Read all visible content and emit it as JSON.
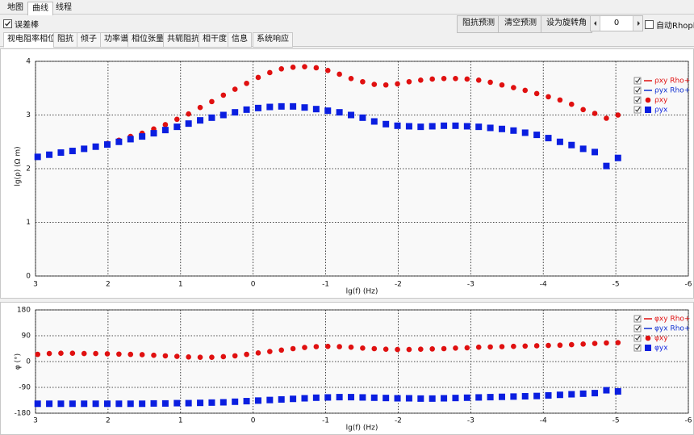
{
  "tabs": [
    "地图",
    "曲线",
    "线程"
  ],
  "error_bar_checkbox": "误差棒",
  "buttons": [
    "阻抗预测",
    "清空预测",
    "设为旋转角"
  ],
  "rotation_angle": 0,
  "auto_rhoplus": "自动Rhoplus",
  "sub_tabs": [
    "视电阻率相位",
    "阻抗",
    "倾子",
    "功率谱",
    "相位张量",
    "共轭阻抗",
    "相干度",
    "信息",
    "系统响应"
  ],
  "chart_data": [
    {
      "type": "scatter",
      "xlabel": "lg(f) (Hz)",
      "ylabel": "lg(ρ) (Ω m)",
      "xlim": [
        3,
        -6
      ],
      "xticks": [
        3,
        2,
        1,
        0,
        -1,
        -2,
        -3,
        -4,
        -5,
        -6
      ],
      "ylim": [
        0,
        4
      ],
      "yticks": [
        0,
        1,
        2,
        3,
        4
      ],
      "grid": true,
      "x": [
        2.97,
        2.81,
        2.65,
        2.49,
        2.33,
        2.17,
        2.01,
        1.85,
        1.69,
        1.53,
        1.37,
        1.21,
        1.05,
        0.89,
        0.73,
        0.57,
        0.41,
        0.25,
        0.09,
        -0.07,
        -0.23,
        -0.39,
        -0.55,
        -0.71,
        -0.87,
        -1.03,
        -1.19,
        -1.35,
        -1.51,
        -1.67,
        -1.83,
        -1.99,
        -2.15,
        -2.31,
        -2.47,
        -2.63,
        -2.79,
        -2.95,
        -3.11,
        -3.27,
        -3.43,
        -3.59,
        -3.75,
        -3.91,
        -4.07,
        -4.23,
        -4.39,
        -4.55,
        -4.71,
        -4.87,
        -5.03
      ],
      "line_legend": [
        {
          "name": "ρxy Rho+",
          "color": "#e01010"
        },
        {
          "name": "ρyx Rho+",
          "color": "#1030d0"
        }
      ],
      "series": [
        {
          "name": "ρxy",
          "color": "#e01010",
          "marker": "circle",
          "values": [
            2.22,
            2.26,
            2.3,
            2.33,
            2.37,
            2.41,
            2.47,
            2.53,
            2.6,
            2.66,
            2.74,
            2.82,
            2.92,
            3.02,
            3.14,
            3.25,
            3.37,
            3.48,
            3.59,
            3.7,
            3.79,
            3.86,
            3.89,
            3.9,
            3.88,
            3.83,
            3.76,
            3.68,
            3.62,
            3.57,
            3.56,
            3.58,
            3.62,
            3.65,
            3.67,
            3.68,
            3.68,
            3.67,
            3.65,
            3.61,
            3.56,
            3.51,
            3.46,
            3.4,
            3.34,
            3.28,
            3.2,
            3.1,
            3.03,
            2.94,
            3.0
          ]
        },
        {
          "name": "ρyx",
          "color": "#0a1ee0",
          "marker": "square",
          "values": [
            2.22,
            2.26,
            2.3,
            2.33,
            2.37,
            2.41,
            2.45,
            2.5,
            2.55,
            2.6,
            2.66,
            2.72,
            2.78,
            2.84,
            2.9,
            2.95,
            3.0,
            3.05,
            3.1,
            3.13,
            3.15,
            3.16,
            3.16,
            3.14,
            3.11,
            3.08,
            3.05,
            3.0,
            2.95,
            2.88,
            2.83,
            2.8,
            2.79,
            2.78,
            2.79,
            2.8,
            2.8,
            2.79,
            2.78,
            2.76,
            2.74,
            2.71,
            2.67,
            2.63,
            2.57,
            2.5,
            2.44,
            2.37,
            2.31,
            2.05,
            2.2
          ]
        }
      ]
    },
    {
      "type": "scatter",
      "xlabel": "lg(f) (Hz)",
      "ylabel": "φ (°)",
      "xlim": [
        3,
        -6
      ],
      "xticks": [
        3,
        2,
        1,
        0,
        -1,
        -2,
        -3,
        -4,
        -5,
        -6
      ],
      "ylim": [
        -180,
        180
      ],
      "yticks": [
        -180,
        -90,
        0,
        90,
        180
      ],
      "grid": true,
      "x": [
        2.97,
        2.81,
        2.65,
        2.49,
        2.33,
        2.17,
        2.01,
        1.85,
        1.69,
        1.53,
        1.37,
        1.21,
        1.05,
        0.89,
        0.73,
        0.57,
        0.41,
        0.25,
        0.09,
        -0.07,
        -0.23,
        -0.39,
        -0.55,
        -0.71,
        -0.87,
        -1.03,
        -1.19,
        -1.35,
        -1.51,
        -1.67,
        -1.83,
        -1.99,
        -2.15,
        -2.31,
        -2.47,
        -2.63,
        -2.79,
        -2.95,
        -3.11,
        -3.27,
        -3.43,
        -3.59,
        -3.75,
        -3.91,
        -4.07,
        -4.23,
        -4.39,
        -4.55,
        -4.71,
        -4.87,
        -5.03
      ],
      "line_legend": [
        {
          "name": "φxy Rho+",
          "color": "#e01010"
        },
        {
          "name": "φyx Rho+",
          "color": "#1030d0"
        }
      ],
      "series": [
        {
          "name": "φxy",
          "color": "#e01010",
          "marker": "circle",
          "values": [
            25,
            28,
            29,
            29,
            28,
            28,
            27,
            26,
            25,
            24,
            22,
            20,
            18,
            16,
            15,
            15,
            17,
            20,
            25,
            30,
            35,
            40,
            45,
            49,
            52,
            53,
            52,
            50,
            47,
            45,
            43,
            42,
            42,
            43,
            44,
            45,
            47,
            48,
            50,
            51,
            52,
            53,
            54,
            55,
            56,
            57,
            59,
            61,
            63,
            65,
            66
          ]
        },
        {
          "name": "φyx",
          "color": "#0a1ee0",
          "marker": "square",
          "values": [
            -147,
            -147,
            -147,
            -147,
            -147,
            -147,
            -147,
            -147,
            -147,
            -147,
            -146,
            -146,
            -145,
            -145,
            -144,
            -143,
            -142,
            -140,
            -138,
            -136,
            -134,
            -132,
            -130,
            -128,
            -126,
            -125,
            -124,
            -124,
            -125,
            -126,
            -127,
            -128,
            -128,
            -129,
            -129,
            -128,
            -127,
            -126,
            -125,
            -124,
            -123,
            -122,
            -121,
            -120,
            -118,
            -116,
            -114,
            -112,
            -110,
            -100,
            -104
          ]
        }
      ]
    }
  ]
}
